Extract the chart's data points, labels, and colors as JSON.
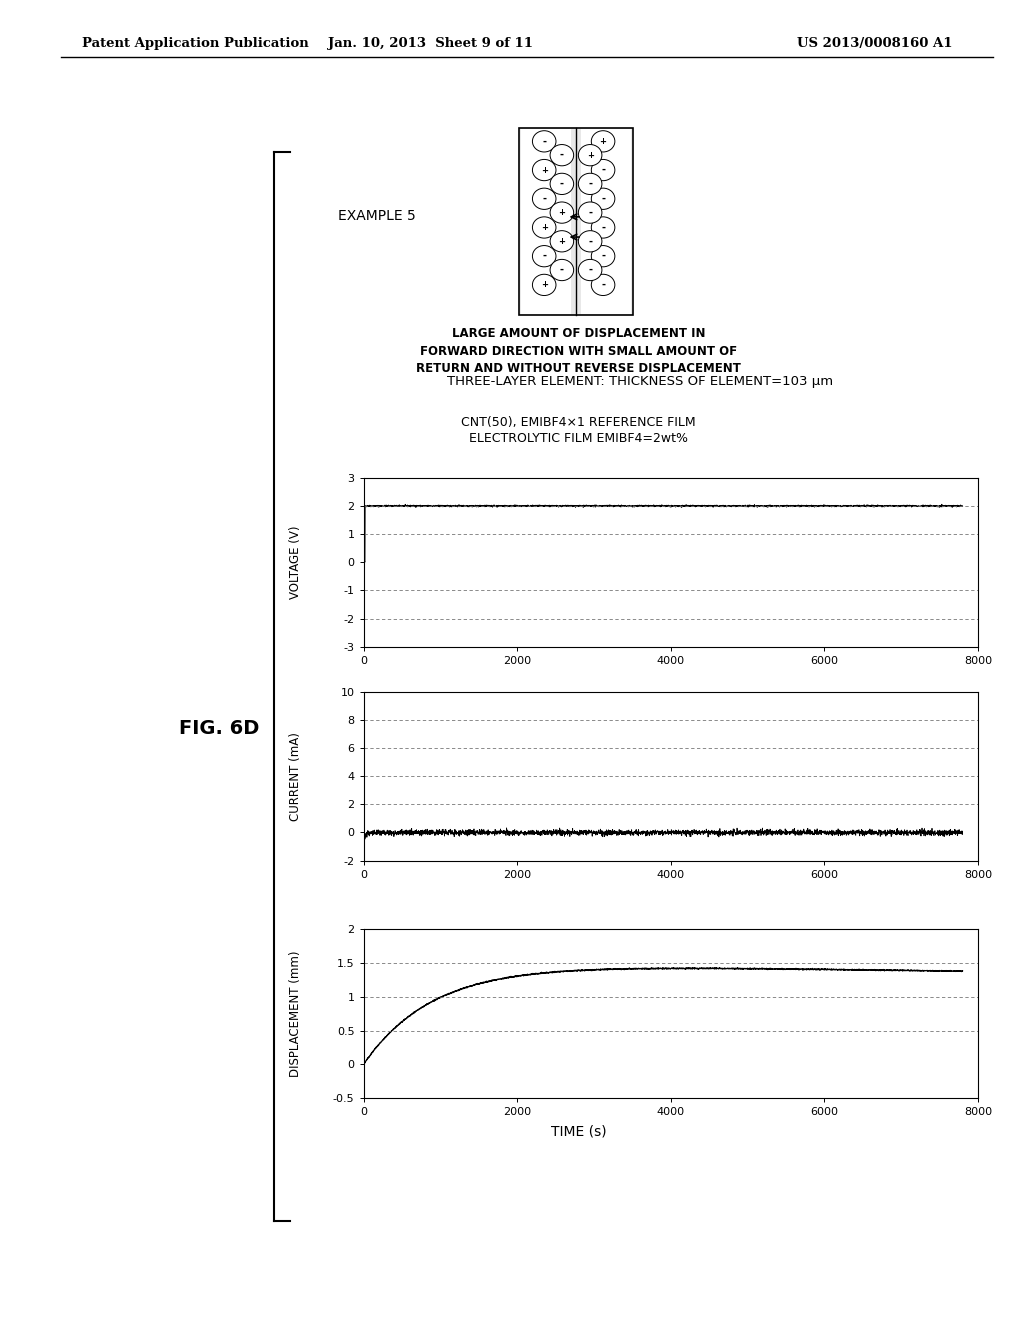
{
  "page_header_left": "Patent Application Publication",
  "page_header_center": "Jan. 10, 2013  Sheet 9 of 11",
  "page_header_right": "US 2013/0008160 A1",
  "fig_label": "FIG. 6D",
  "example_label": "EXAMPLE 5",
  "caption_line1": "LARGE AMOUNT OF DISPLACEMENT IN",
  "caption_line2": "FORWARD DIRECTION WITH SMALL AMOUNT OF",
  "caption_line3": "RETURN AND WITHOUT REVERSE DISPLACEMENT",
  "box_label": "THREE-LAYER ELEMENT: THICKNESS OF ELEMENT=103 μm",
  "chart_title_line1": "CNT(50), EMIBF4×1 REFERENCE FILM",
  "chart_title_line2": "ELECTROLYTIC FILM EMIBF4=2wt%",
  "voltage_ylabel": "VOLTAGE (V)",
  "current_ylabel": "CURRENT (mA)",
  "displacement_ylabel": "DISPLACEMENT (mm)",
  "xlabel": "TIME (s)",
  "voltage_ylim": [
    -3,
    3
  ],
  "voltage_yticks": [
    -3,
    -2,
    -1,
    0,
    1,
    2,
    3
  ],
  "current_ylim": [
    -2,
    10
  ],
  "current_yticks": [
    -2,
    0,
    2,
    4,
    6,
    8,
    10
  ],
  "displacement_ylim": [
    -0.5,
    2
  ],
  "displacement_yticks": [
    -0.5,
    0,
    0.5,
    1.0,
    1.5,
    2.0
  ],
  "xlim": [
    0,
    8000
  ],
  "xticks": [
    0,
    2000,
    4000,
    6000,
    8000
  ],
  "bg_color": "#ffffff",
  "line_color": "#000000",
  "dashed_line_color": "#777777"
}
